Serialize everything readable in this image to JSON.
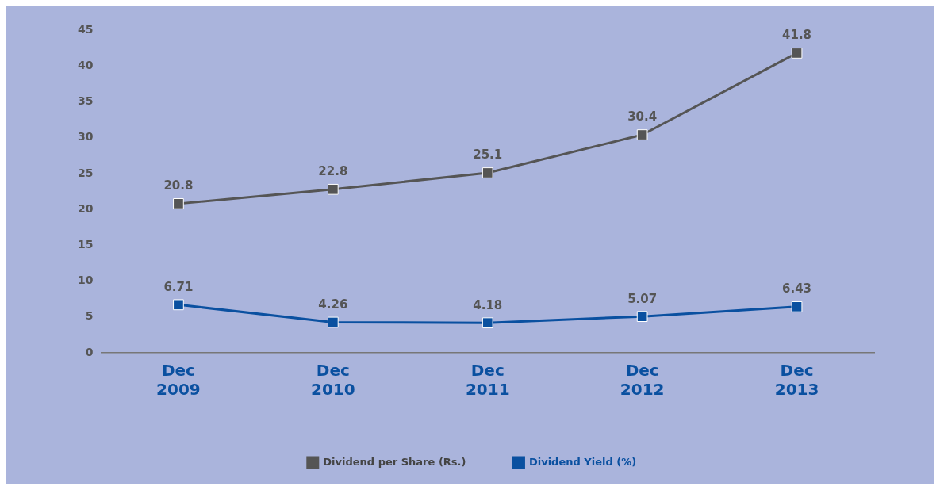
{
  "chart_data": {
    "type": "line",
    "categories": [
      "Dec 2009",
      "Dec 2010",
      "Dec 2011",
      "Dec 2012",
      "Dec 2013"
    ],
    "series": [
      {
        "name": "Dividend per Share (Rs.)",
        "color": "#555555",
        "values": [
          20.8,
          22.8,
          25.1,
          30.4,
          41.8
        ]
      },
      {
        "name": "Dividend Yield (%)",
        "color": "#0a50a0",
        "values": [
          6.71,
          4.26,
          4.18,
          5.07,
          6.43
        ]
      }
    ],
    "ylim": [
      0,
      45
    ],
    "yticks": [
      0,
      5,
      10,
      15,
      20,
      25,
      30,
      35,
      40,
      45
    ],
    "grid": false,
    "legend": "bottom",
    "marker": "square",
    "line_style": "solid",
    "data_labels": true
  }
}
